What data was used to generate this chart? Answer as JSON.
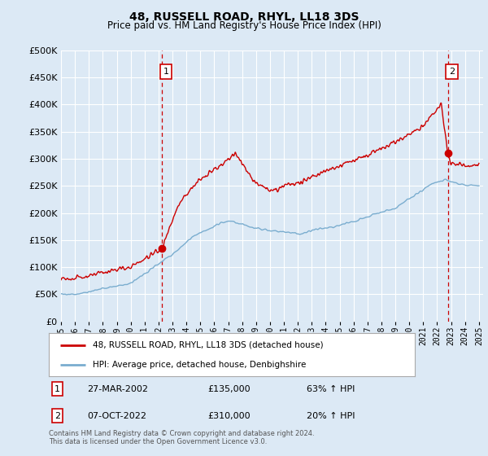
{
  "title": "48, RUSSELL ROAD, RHYL, LL18 3DS",
  "subtitle": "Price paid vs. HM Land Registry's House Price Index (HPI)",
  "background_color": "#dce9f5",
  "plot_bg_color": "#dce9f5",
  "red_line_color": "#cc0000",
  "blue_line_color": "#7aadcf",
  "sale1_date": "27-MAR-2002",
  "sale1_price": 135000,
  "sale1_label": "63% ↑ HPI",
  "sale2_date": "07-OCT-2022",
  "sale2_price": 310000,
  "sale2_label": "20% ↑ HPI",
  "ylim_min": 0,
  "ylim_max": 500000,
  "legend_label_red": "48, RUSSELL ROAD, RHYL, LL18 3DS (detached house)",
  "legend_label_blue": "HPI: Average price, detached house, Denbighshire",
  "footer": "Contains HM Land Registry data © Crown copyright and database right 2024.\nThis data is licensed under the Open Government Licence v3.0.",
  "sale1_x": 2002.23,
  "sale2_x": 2022.77
}
